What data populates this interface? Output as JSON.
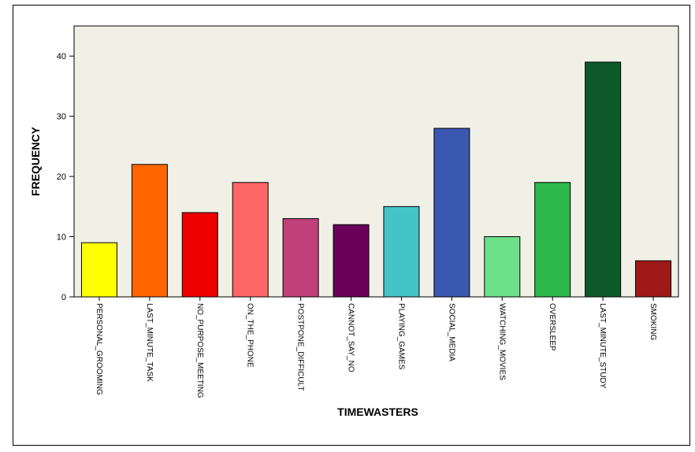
{
  "chart_data": {
    "type": "bar",
    "title": "",
    "xlabel": "TIMEWASTERS",
    "ylabel": "FREQUENCY",
    "ylim": [
      0,
      45
    ],
    "yticks": [
      0,
      10,
      20,
      30,
      40
    ],
    "grid": false,
    "plot_background": "#f1f0e6",
    "categories": [
      "PERSONAL_GROOMING",
      "LAST_MINUTE_TASK",
      "NO_PURPOSE_MEETING",
      "ON_THE_PHONE",
      "POSTPONE_DIFFICULT",
      "CANNOT_SAY_NO",
      "PLAYING_GAMES",
      "SOCIAL_MEDIA",
      "WATCHING_MOVIES",
      "OVERSLEEP",
      "LAST_MINUTE_STUDY",
      "SMOKING"
    ],
    "values": [
      9,
      22,
      14,
      19,
      13,
      12,
      15,
      28,
      10,
      19,
      39,
      6
    ],
    "colors": [
      "#ffff00",
      "#ff6600",
      "#ee0000",
      "#ff6666",
      "#c0407a",
      "#6a005a",
      "#45c4c8",
      "#3b58b0",
      "#6ee08a",
      "#2db84a",
      "#0e5a2a",
      "#a01818"
    ]
  }
}
